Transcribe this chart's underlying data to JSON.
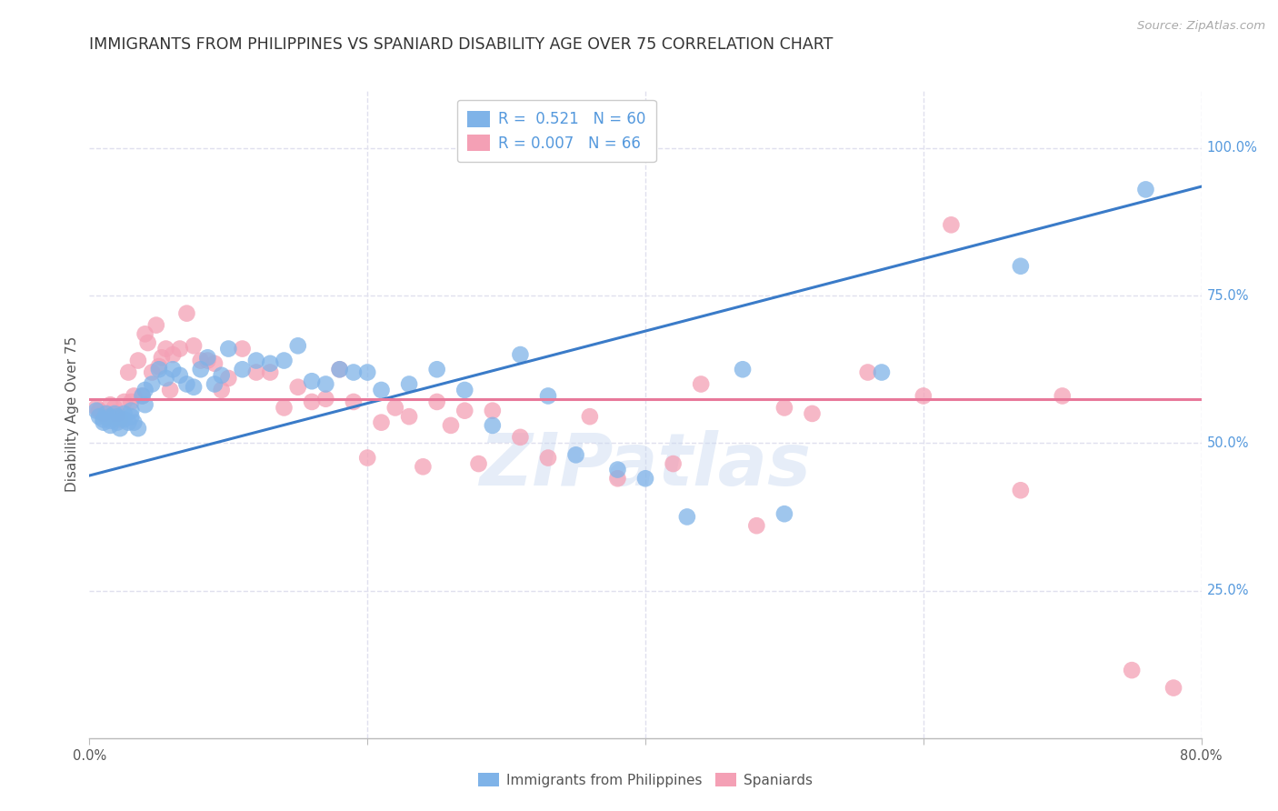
{
  "title": "IMMIGRANTS FROM PHILIPPINES VS SPANIARD DISABILITY AGE OVER 75 CORRELATION CHART",
  "source": "Source: ZipAtlas.com",
  "ylabel": "Disability Age Over 75",
  "legend_blue_r": "0.521",
  "legend_blue_n": "60",
  "legend_pink_r": "0.007",
  "legend_pink_n": "66",
  "legend_blue_label": "Immigrants from Philippines",
  "legend_pink_label": "Spaniards",
  "watermark": "ZIPatlas",
  "xlim": [
    0.0,
    0.8
  ],
  "ylim": [
    0.0,
    1.1
  ],
  "yticks": [
    0.25,
    0.5,
    0.75,
    1.0
  ],
  "ytick_labels": [
    "25.0%",
    "50.0%",
    "75.0%",
    "100.0%"
  ],
  "xticks": [
    0.0,
    0.2,
    0.4,
    0.6,
    0.8
  ],
  "xtick_labels": [
    "0.0%",
    "",
    "",
    "",
    "80.0%"
  ],
  "blue_line_x": [
    0.0,
    0.8
  ],
  "blue_line_y": [
    0.445,
    0.935
  ],
  "pink_line_y": 0.575,
  "blue_scatter_x": [
    0.005,
    0.007,
    0.01,
    0.01,
    0.012,
    0.015,
    0.015,
    0.015,
    0.018,
    0.02,
    0.02,
    0.022,
    0.025,
    0.025,
    0.028,
    0.03,
    0.03,
    0.032,
    0.035,
    0.038,
    0.04,
    0.04,
    0.045,
    0.05,
    0.055,
    0.06,
    0.065,
    0.07,
    0.075,
    0.08,
    0.085,
    0.09,
    0.095,
    0.1,
    0.11,
    0.12,
    0.13,
    0.14,
    0.15,
    0.16,
    0.17,
    0.18,
    0.19,
    0.2,
    0.21,
    0.23,
    0.25,
    0.27,
    0.29,
    0.31,
    0.33,
    0.35,
    0.38,
    0.4,
    0.43,
    0.47,
    0.5,
    0.57,
    0.67,
    0.76
  ],
  "blue_scatter_y": [
    0.555,
    0.545,
    0.54,
    0.535,
    0.55,
    0.545,
    0.538,
    0.53,
    0.55,
    0.545,
    0.535,
    0.525,
    0.55,
    0.54,
    0.535,
    0.555,
    0.545,
    0.535,
    0.525,
    0.58,
    0.59,
    0.565,
    0.6,
    0.625,
    0.61,
    0.625,
    0.615,
    0.6,
    0.595,
    0.625,
    0.645,
    0.6,
    0.615,
    0.66,
    0.625,
    0.64,
    0.635,
    0.64,
    0.665,
    0.605,
    0.6,
    0.625,
    0.62,
    0.62,
    0.59,
    0.6,
    0.625,
    0.59,
    0.53,
    0.65,
    0.58,
    0.48,
    0.455,
    0.44,
    0.375,
    0.625,
    0.38,
    0.62,
    0.8,
    0.93
  ],
  "pink_scatter_x": [
    0.005,
    0.007,
    0.01,
    0.012,
    0.015,
    0.018,
    0.02,
    0.022,
    0.025,
    0.028,
    0.03,
    0.032,
    0.035,
    0.038,
    0.04,
    0.042,
    0.045,
    0.048,
    0.05,
    0.052,
    0.055,
    0.058,
    0.06,
    0.065,
    0.07,
    0.075,
    0.08,
    0.085,
    0.09,
    0.095,
    0.1,
    0.11,
    0.12,
    0.13,
    0.14,
    0.15,
    0.16,
    0.17,
    0.18,
    0.19,
    0.2,
    0.21,
    0.22,
    0.23,
    0.24,
    0.25,
    0.26,
    0.27,
    0.28,
    0.29,
    0.31,
    0.33,
    0.36,
    0.38,
    0.42,
    0.44,
    0.48,
    0.5,
    0.52,
    0.56,
    0.6,
    0.62,
    0.67,
    0.7,
    0.75,
    0.78
  ],
  "pink_scatter_y": [
    0.56,
    0.555,
    0.55,
    0.545,
    0.565,
    0.56,
    0.55,
    0.54,
    0.57,
    0.62,
    0.57,
    0.58,
    0.64,
    0.58,
    0.685,
    0.67,
    0.62,
    0.7,
    0.63,
    0.645,
    0.66,
    0.59,
    0.65,
    0.66,
    0.72,
    0.665,
    0.64,
    0.64,
    0.635,
    0.59,
    0.61,
    0.66,
    0.62,
    0.62,
    0.56,
    0.595,
    0.57,
    0.575,
    0.625,
    0.57,
    0.475,
    0.535,
    0.56,
    0.545,
    0.46,
    0.57,
    0.53,
    0.555,
    0.465,
    0.555,
    0.51,
    0.475,
    0.545,
    0.44,
    0.465,
    0.6,
    0.36,
    0.56,
    0.55,
    0.62,
    0.58,
    0.87,
    0.42,
    0.58,
    0.115,
    0.085
  ],
  "background_color": "#ffffff",
  "blue_color": "#7fb3e8",
  "pink_color": "#f4a0b5",
  "blue_line_color": "#3a7bc8",
  "pink_line_color": "#e8789a",
  "grid_color": "#e0e0ee",
  "right_axis_color": "#5599dd",
  "title_fontsize": 12.5,
  "axis_label_fontsize": 11
}
